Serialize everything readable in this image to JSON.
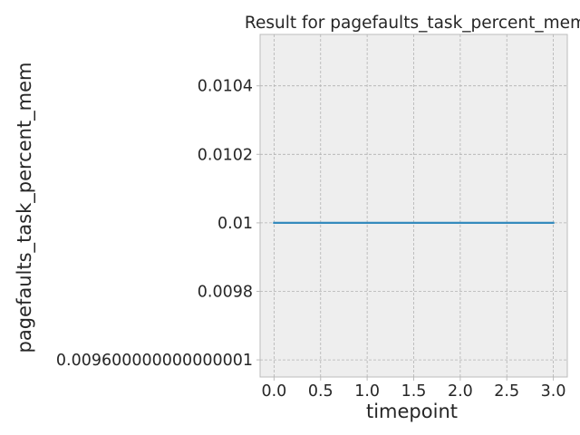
{
  "chart_data": {
    "type": "line",
    "title": "Result for pagefaults_task_percent_mem",
    "xlabel": "timepoint",
    "ylabel": "pagefaults_task_percent_mem",
    "x": [
      0,
      1,
      2,
      3
    ],
    "series": [
      {
        "values": [
          0.01,
          0.01,
          0.01,
          0.01
        ]
      }
    ],
    "xlim": [
      -0.15,
      3.15
    ],
    "ylim": [
      0.00955,
      0.01055
    ],
    "xticks": [
      0,
      0.5,
      1,
      1.5,
      2,
      2.5,
      3
    ],
    "xtick_labels": [
      "0.0",
      "0.5",
      "1.0",
      "1.5",
      "2.0",
      "2.5",
      "3.0"
    ],
    "yticks": [
      0.0096,
      0.0098,
      0.01,
      0.0102,
      0.0104
    ],
    "ytick_labels": [
      "0.009600000000000001",
      "0.0098",
      "0.01",
      "0.0102",
      "0.0104"
    ],
    "grid": true,
    "colors": {
      "plot_background": "#eeeeee",
      "line": "#348abd",
      "grid": "#b2b2b2"
    }
  }
}
